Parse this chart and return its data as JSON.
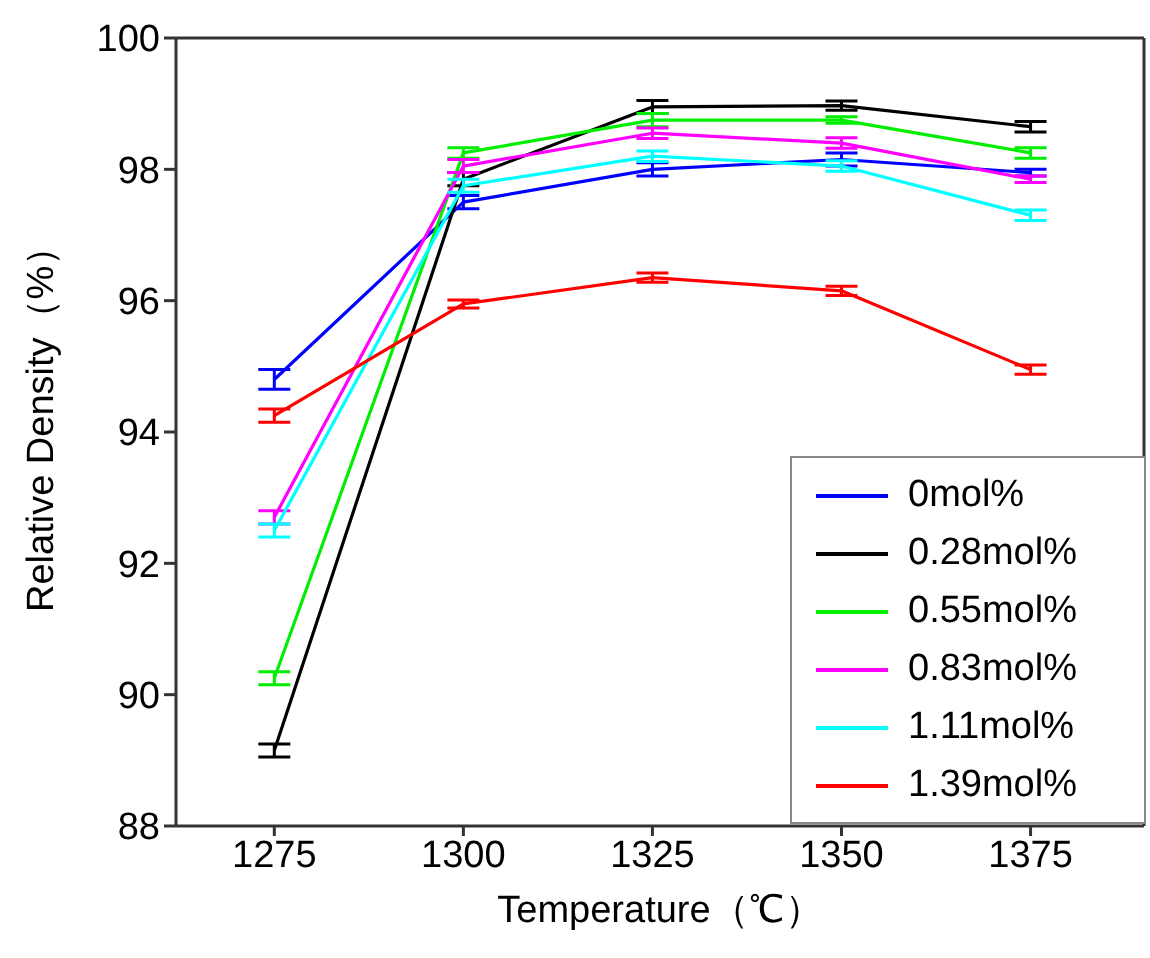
{
  "chart_data": {
    "type": "line",
    "xlabel": "Temperature（℃）",
    "ylabel": "Relative Density（%）",
    "x": [
      1275,
      1300,
      1325,
      1350,
      1375
    ],
    "xlim": [
      1262,
      1390
    ],
    "xticks": [
      1275,
      1300,
      1325,
      1350,
      1375
    ],
    "ylim": [
      88,
      100
    ],
    "yticks": [
      88,
      90,
      92,
      94,
      96,
      98,
      100
    ],
    "grid": false,
    "legend": "bottom right",
    "marker": "none",
    "line_style": "solid",
    "series": [
      {
        "name": "0mol%",
        "color": "#0000ff",
        "values": [
          94.8,
          97.5,
          98.0,
          98.15,
          97.95
        ],
        "errors": [
          0.15,
          0.1,
          0.1,
          0.1,
          0.05
        ]
      },
      {
        "name": "0.28mol%",
        "color": "#000000",
        "values": [
          89.15,
          97.85,
          98.95,
          98.97,
          98.65
        ],
        "errors": [
          0.1,
          0.1,
          0.1,
          0.07,
          0.08
        ]
      },
      {
        "name": "0.55mol%",
        "color": "#00ee00",
        "values": [
          90.25,
          98.25,
          98.75,
          98.75,
          98.25
        ],
        "errors": [
          0.1,
          0.08,
          0.1,
          0.05,
          0.08
        ]
      },
      {
        "name": "0.83mol%",
        "color": "#ff00ff",
        "values": [
          92.7,
          98.05,
          98.55,
          98.4,
          97.85
        ],
        "errors": [
          0.1,
          0.1,
          0.08,
          0.08,
          0.05
        ]
      },
      {
        "name": "1.11mol%",
        "color": "#00ffff",
        "values": [
          92.5,
          97.75,
          98.2,
          98.05,
          97.3
        ],
        "errors": [
          0.1,
          0.1,
          0.08,
          0.08,
          0.08
        ]
      },
      {
        "name": "1.39mol%",
        "color": "#ff0000",
        "values": [
          94.25,
          95.95,
          96.35,
          96.15,
          94.95
        ],
        "errors": [
          0.1,
          0.06,
          0.07,
          0.07,
          0.07
        ]
      }
    ]
  }
}
